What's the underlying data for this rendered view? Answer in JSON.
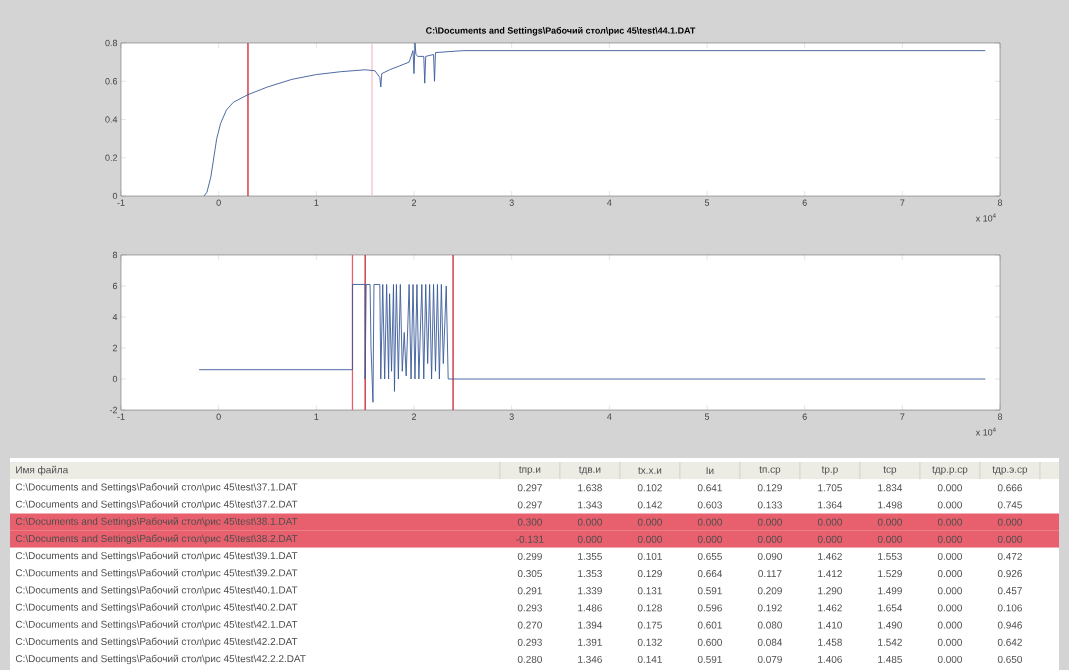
{
  "chart_data": [
    {
      "type": "line",
      "title": "C:\\Documents and Settings\\Рабочий стол\\рис 45\\test\\44.1.DAT",
      "xlabel": "x 10$^{4}$",
      "xlim": [
        -1,
        8
      ],
      "ylim": [
        0,
        0.8
      ],
      "xticks": [
        -1,
        0,
        1,
        2,
        3,
        4,
        5,
        6,
        7,
        8
      ],
      "yticks": [
        0,
        0.2,
        0.4,
        0.6,
        0.8
      ],
      "series": [
        {
          "color": "#3a5a9a",
          "x": [
            -0.15,
            -0.12,
            -0.08,
            -0.05,
            -0.02,
            0.02,
            0.08,
            0.15,
            0.3,
            0.5,
            0.75,
            1.0,
            1.25,
            1.5,
            1.6,
            1.65,
            1.66,
            1.67,
            1.75,
            1.85,
            1.95,
            1.99,
            2.0,
            2.01,
            2.02,
            2.04,
            2.1,
            2.11,
            2.12,
            2.2,
            2.21,
            2.22,
            2.5,
            3,
            4,
            5,
            6,
            7,
            7.85
          ],
          "values": [
            0,
            0.02,
            0.1,
            0.2,
            0.3,
            0.38,
            0.45,
            0.49,
            0.53,
            0.57,
            0.61,
            0.635,
            0.65,
            0.66,
            0.655,
            0.62,
            0.57,
            0.64,
            0.66,
            0.68,
            0.7,
            0.76,
            0.64,
            0.8,
            0.74,
            0.73,
            0.73,
            0.59,
            0.73,
            0.74,
            0.6,
            0.75,
            0.76,
            0.76,
            0.76,
            0.76,
            0.76,
            0.76,
            0.76
          ]
        }
      ],
      "ref_lines": [
        {
          "axis": "x",
          "value": 0.3,
          "color": "#cc2233"
        },
        {
          "axis": "x",
          "value": 1.57,
          "color": "#f4c0c8"
        }
      ]
    },
    {
      "type": "line",
      "xlabel": "x 10$^{4}$",
      "xlim": [
        -1,
        8
      ],
      "ylim": [
        -2,
        8
      ],
      "xticks": [
        -1,
        0,
        1,
        2,
        3,
        4,
        5,
        6,
        7,
        8
      ],
      "yticks": [
        -2,
        0,
        2,
        4,
        6,
        8
      ],
      "series": [
        {
          "color": "#3a5a9a",
          "x": [
            -0.2,
            1.37,
            1.37,
            1.5,
            1.5,
            1.51,
            1.55,
            1.56,
            1.58,
            1.59,
            1.65,
            1.66,
            1.68,
            1.7,
            1.72,
            1.74,
            1.75,
            1.77,
            1.79,
            1.8,
            1.82,
            1.84,
            1.86,
            1.88,
            1.9,
            1.92,
            1.95,
            1.97,
            1.99,
            2.01,
            2.03,
            2.05,
            2.08,
            2.1,
            2.12,
            2.14,
            2.16,
            2.18,
            2.2,
            2.22,
            2.24,
            2.26,
            2.28,
            2.3,
            2.33,
            2.35,
            2.38,
            7.85
          ],
          "values": [
            0.6,
            0.6,
            6.1,
            6.1,
            0,
            6.1,
            6.1,
            2,
            -1.5,
            6.1,
            6.1,
            0,
            6.1,
            0,
            6.1,
            0,
            5.5,
            0.5,
            6.1,
            -0.8,
            6.1,
            0,
            6.1,
            0.5,
            3,
            0.2,
            6.1,
            0,
            6.1,
            0,
            6.1,
            0,
            6.1,
            0,
            6.1,
            1,
            6.1,
            0,
            6.1,
            0.5,
            6.1,
            0,
            6.1,
            1,
            6,
            0,
            0,
            0
          ]
        }
      ],
      "ref_lines": [
        {
          "axis": "x",
          "value": 1.37,
          "color": "#e06070"
        },
        {
          "axis": "x",
          "value": 1.5,
          "color": "#cc2233"
        },
        {
          "axis": "x",
          "value": 2.4,
          "color": "#cc2233"
        }
      ]
    },
    {
      "type": "other",
      "categories": [
        "Имя файла",
        "tпр.и",
        "tдв.и",
        "tх.х.и",
        "Iи",
        "tп.ср",
        "tр.р",
        "tср",
        "tдр.р.ср",
        "tдр.э.ср"
      ],
      "colors": [
        "#ecece4",
        "#ffffff",
        "#ffffff",
        "#e8606e",
        "#e8606e",
        "#ffffff",
        "#ffffff",
        "#ffffff",
        "#ffffff",
        "#ffffff",
        "#ffffff",
        "#ffffff"
      ],
      "annotations": [
        "C:\\Documents and Settings\\Рабочий стол\\рис 45\\test\\37.1.DAT",
        "0.297",
        "1.638",
        "0.102",
        "0.641",
        "0.129",
        "1.705",
        "1.834",
        "0.000",
        "0.666",
        "C:\\Documents and Settings\\Рабочий стол\\рис 45\\test\\37.2.DAT",
        "0.297",
        "1.343",
        "0.142",
        "0.603",
        "0.133",
        "1.364",
        "1.498",
        "0.000",
        "0.745",
        "C:\\Documents and Settings\\Рабочий стол\\рис 45\\test\\38.1.DAT",
        "0.300",
        "0.000",
        "0.000",
        "0.000",
        "0.000",
        "0.000",
        "0.000",
        "0.000",
        "0.000",
        "C:\\Documents and Settings\\Рабочий стол\\рис 45\\test\\38.2.DAT",
        "-0.131",
        "0.000",
        "0.000",
        "0.000",
        "0.000",
        "0.000",
        "0.000",
        "0.000",
        "0.000",
        "C:\\Documents and Settings\\Рабочий стол\\рис 45\\test\\39.1.DAT",
        "0.299",
        "1.355",
        "0.101",
        "0.655",
        "0.090",
        "1.462",
        "1.553",
        "0.000",
        "0.472",
        "C:\\Documents and Settings\\Рабочий стол\\рис 45\\test\\39.2.DAT",
        "0.305",
        "1.353",
        "0.129",
        "0.664",
        "0.117",
        "1.412",
        "1.529",
        "0.000",
        "0.926",
        "C:\\Documents and Settings\\Рабочий стол\\рис 45\\test\\40.1.DAT",
        "0.291",
        "1.339",
        "0.131",
        "0.591",
        "0.209",
        "1.290",
        "1.499",
        "0.000",
        "0.457",
        "C:\\Documents and Settings\\Рабочий стол\\рис 45\\test\\40.2.DAT",
        "0.293",
        "1.486",
        "0.128",
        "0.596",
        "0.192",
        "1.462",
        "1.654",
        "0.000",
        "0.106",
        "C:\\Documents and Settings\\Рабочий стол\\рис 45\\test\\42.1.DAT",
        "0.270",
        "1.394",
        "0.175",
        "0.601",
        "0.080",
        "1.410",
        "1.490",
        "0.000",
        "0.946",
        "C:\\Documents and Settings\\Рабочий стол\\рис 45\\test\\42.2.DAT",
        "0.293",
        "1.391",
        "0.132",
        "0.600",
        "0.084",
        "1.458",
        "1.542",
        "0.000",
        "0.642",
        "C:\\Documents and Settings\\Рабочий стол\\рис 45\\test\\42.2.2.DAT",
        "0.280",
        "1.346",
        "0.141",
        "0.591",
        "0.079",
        "1.406",
        "1.485",
        "0.000",
        "0.650"
      ]
    }
  ]
}
